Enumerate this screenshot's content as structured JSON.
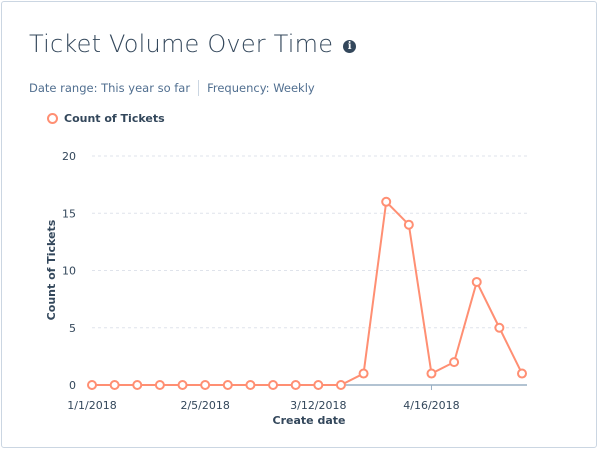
{
  "header": {
    "title": "Ticket Volume Over Time",
    "info_icon": "info-icon",
    "date_range": "Date range: This year so far",
    "frequency": "Frequency: Weekly"
  },
  "chart_data": {
    "type": "line",
    "xlabel": "Create date",
    "ylabel": "Count of Tickets",
    "ylim": [
      0,
      20
    ],
    "yticks": [
      0,
      5,
      10,
      15,
      20
    ],
    "x": [
      "1/1/2018",
      "1/8/2018",
      "1/15/2018",
      "1/22/2018",
      "1/29/2018",
      "2/5/2018",
      "2/12/2018",
      "2/19/2018",
      "2/26/2018",
      "3/5/2018",
      "3/12/2018",
      "3/19/2018",
      "3/26/2018",
      "4/2/2018",
      "4/9/2018",
      "4/16/2018",
      "4/23/2018",
      "4/30/2018",
      "5/7/2018",
      "5/14/2018"
    ],
    "xticks": [
      "1/1/2018",
      "2/5/2018",
      "3/12/2018",
      "4/16/2018"
    ],
    "grid": true,
    "legend": "top-left",
    "series": [
      {
        "name": "Count of Tickets",
        "color": "#ff8f73",
        "values": [
          0,
          0,
          0,
          0,
          0,
          0,
          0,
          0,
          0,
          0,
          0,
          0,
          1,
          16,
          14,
          1,
          2,
          9,
          5,
          1
        ]
      }
    ]
  }
}
